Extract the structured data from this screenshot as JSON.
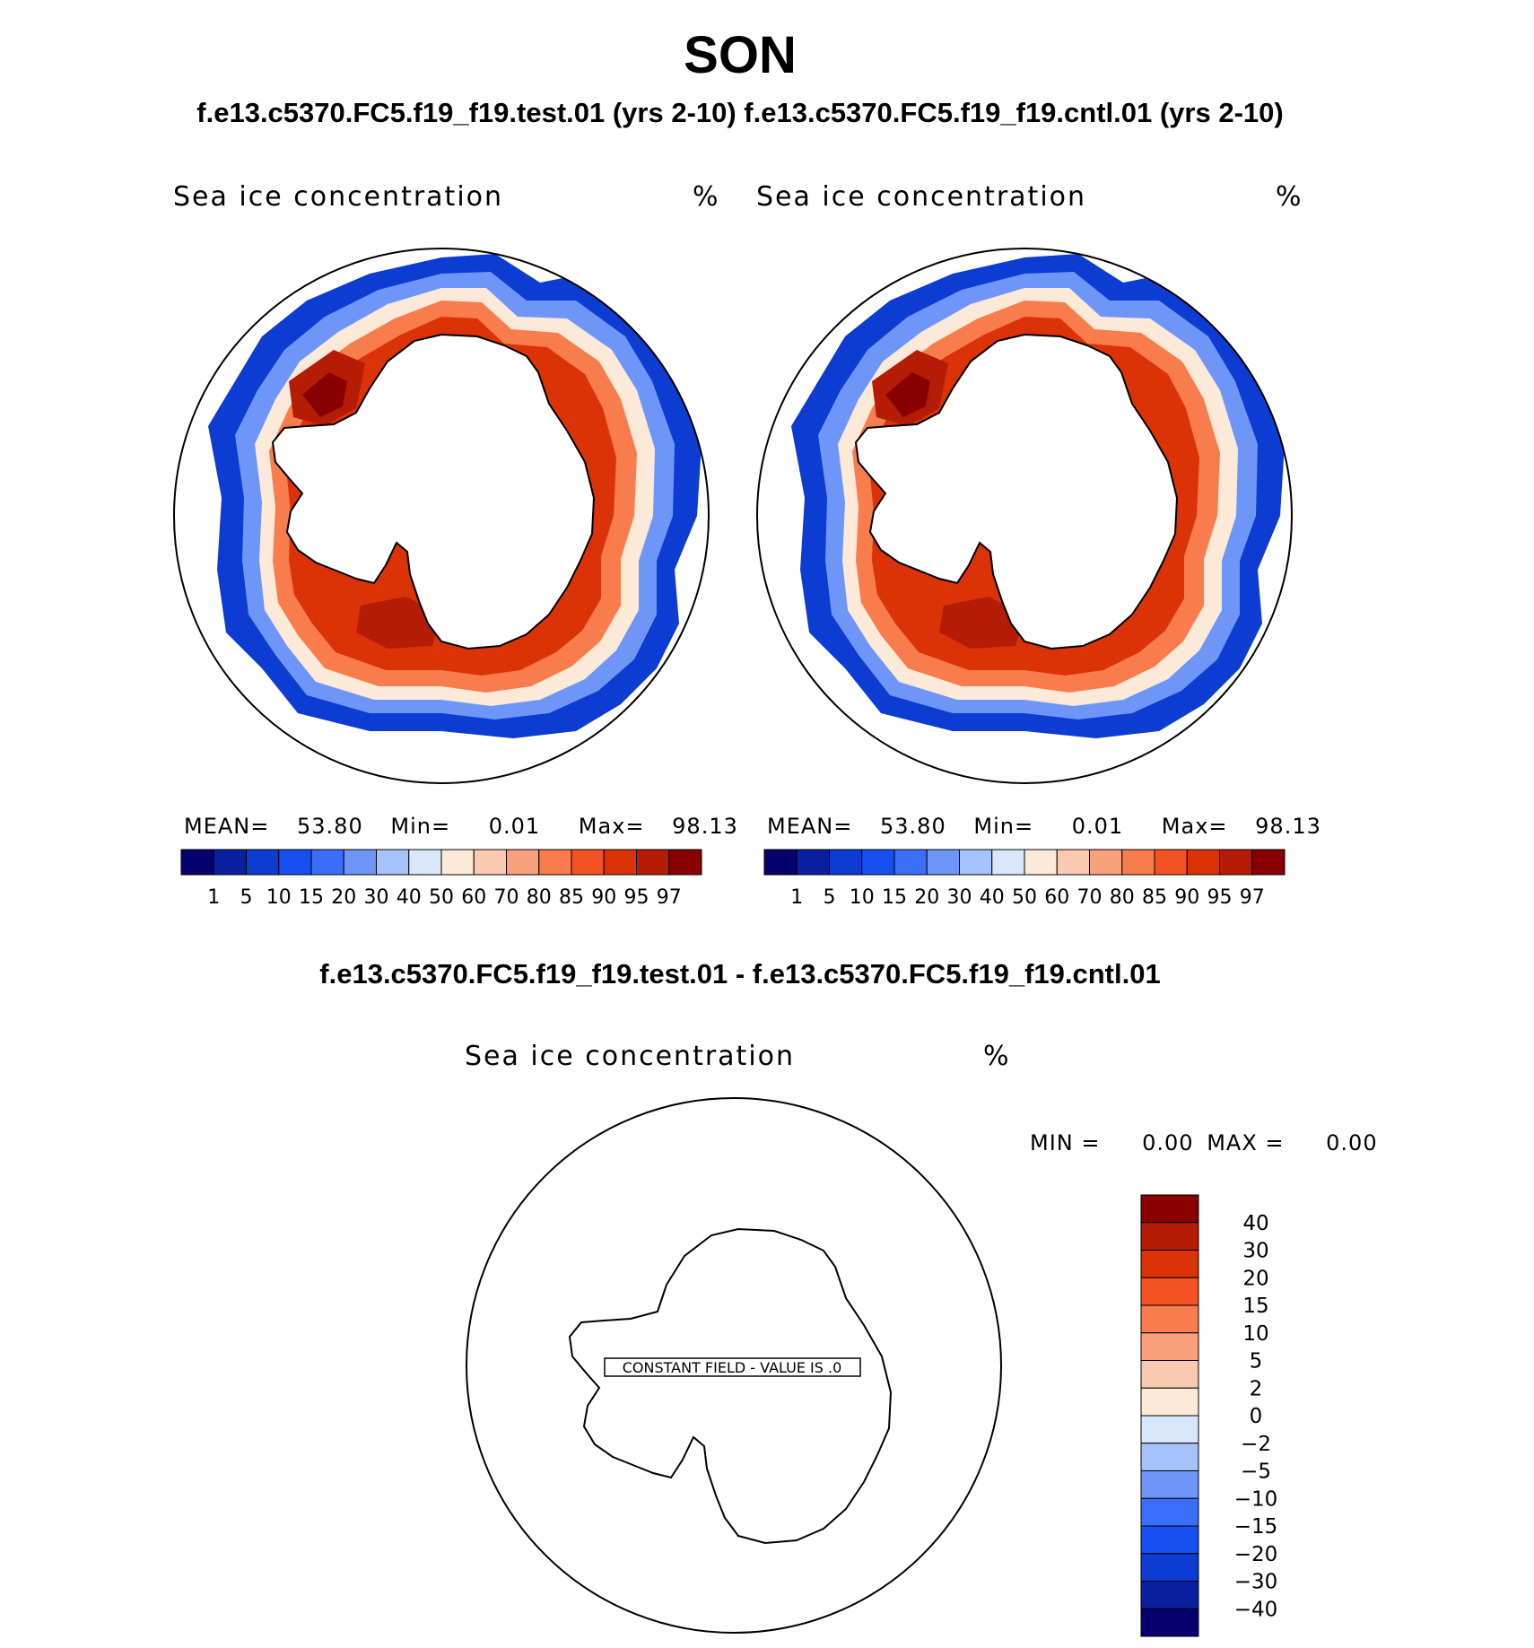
{
  "title": "SON",
  "subtitle": "f.e13.c5370.FC5.f19_f19.test.01 (yrs 2-10) f.e13.c5370.FC5.f19_f19.cntl.01 (yrs 2-10)",
  "diff_title": "f.e13.c5370.FC5.f19_f19.test.01 - f.e13.c5370.FC5.f19_f19.cntl.01",
  "panels": [
    {
      "variable": "Sea ice concentration",
      "units": "%",
      "stats": {
        "mean_label": "MEAN=",
        "mean": "53.80",
        "min_label": "Min=",
        "min": "0.01",
        "max_label": "Max=",
        "max": "98.13"
      }
    },
    {
      "variable": "Sea ice concentration",
      "units": "%",
      "stats": {
        "mean_label": "MEAN=",
        "mean": "53.80",
        "min_label": "Min=",
        "min": "0.01",
        "max_label": "Max=",
        "max": "98.13"
      }
    }
  ],
  "diff_panel": {
    "variable": "Sea ice concentration",
    "units": "%",
    "min_label": "MIN =",
    "min": "0.00",
    "max_label": "MAX =",
    "max": "0.00",
    "constant_note": "CONSTANT FIELD - VALUE IS .0"
  },
  "colorbar": {
    "levels": [
      "1",
      "5",
      "10",
      "15",
      "20",
      "30",
      "40",
      "50",
      "60",
      "70",
      "80",
      "85",
      "90",
      "95",
      "97"
    ],
    "colors": [
      "#08006e",
      "#0a1fa0",
      "#0c3cd2",
      "#1650f0",
      "#3a6ef8",
      "#6e96f8",
      "#a6c2fa",
      "#d8e8fa",
      "#fde9d8",
      "#fbc8b0",
      "#f9a07c",
      "#f87c4c",
      "#f45224",
      "#dc3208",
      "#b41c06",
      "#880000"
    ]
  },
  "diff_colorbar": {
    "levels": [
      "40",
      "30",
      "20",
      "15",
      "10",
      "5",
      "2",
      "0",
      "−2",
      "−5",
      "−10",
      "−15",
      "−20",
      "−30",
      "−40"
    ],
    "colors": [
      "#880000",
      "#b41c06",
      "#dc3208",
      "#f45224",
      "#f87c4c",
      "#f9a07c",
      "#fbc8b0",
      "#fde9d8",
      "#d8e8fa",
      "#a6c2fa",
      "#6e96f8",
      "#3a6ef8",
      "#1650f0",
      "#0c3cd2",
      "#0a1fa0",
      "#08006e"
    ]
  }
}
